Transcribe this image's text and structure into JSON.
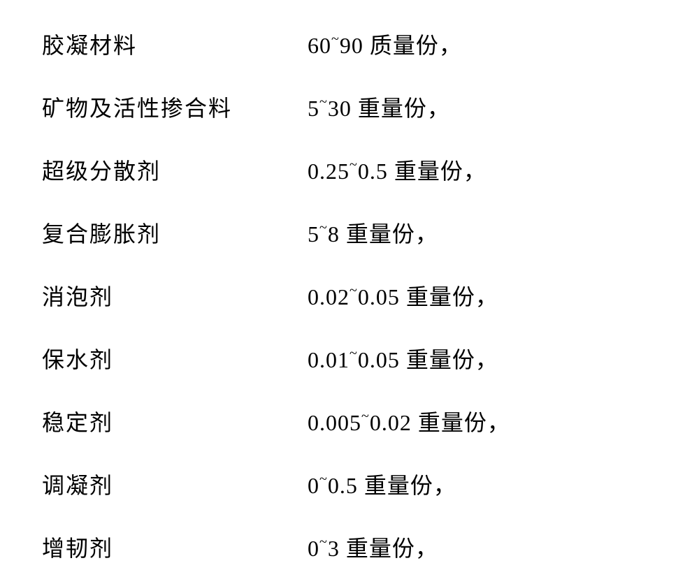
{
  "table": {
    "type": "table",
    "background_color": "#ffffff",
    "text_color": "#000000",
    "font_family": "SimSun",
    "label_fontsize": 32,
    "value_fontsize": 32,
    "row_spacing": 44,
    "col_label_width": 380,
    "columns": [
      "label",
      "value"
    ],
    "rows": [
      {
        "label": "胶凝材料",
        "range_low": "60",
        "range_high": "90",
        "unit": "质量份，"
      },
      {
        "label": "矿物及活性掺合料",
        "range_low": "5",
        "range_high": "30",
        "unit": "重量份，"
      },
      {
        "label": "超级分散剂",
        "range_low": "0.25",
        "range_high": "0.5",
        "unit": "重量份，"
      },
      {
        "label": "复合膨胀剂",
        "range_low": "5",
        "range_high": "8",
        "unit": "重量份，"
      },
      {
        "label": "消泡剂",
        "range_low": "0.02",
        "range_high": "0.05",
        "unit": "重量份，"
      },
      {
        "label": "保水剂",
        "range_low": "0.01",
        "range_high": "0.05",
        "unit": "重量份，"
      },
      {
        "label": "稳定剂",
        "range_low": "0.005",
        "range_high": "0.02",
        "unit": "重量份，"
      },
      {
        "label": "调凝剂",
        "range_low": "0",
        "range_high": "0.5",
        "unit": "重量份，"
      },
      {
        "label": "增韧剂",
        "range_low": "0",
        "range_high": "3",
        "unit": "重量份，"
      }
    ]
  }
}
